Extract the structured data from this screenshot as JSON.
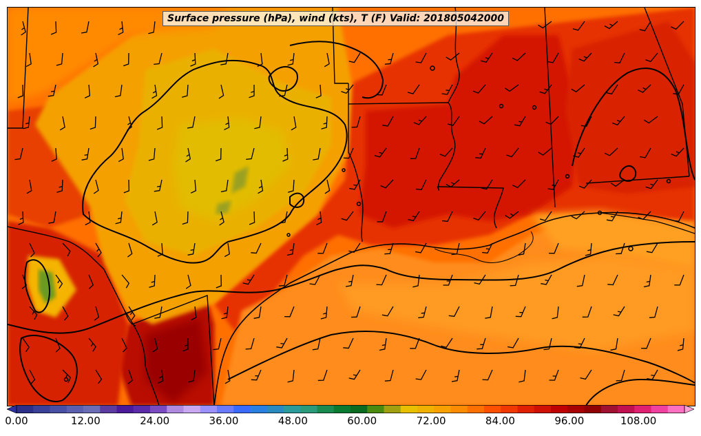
{
  "title": "Surface pressure (hPa), wind (kts), T (F) Valid: 201805042000",
  "colorbar": {
    "min": 0,
    "max": 116,
    "step": 3,
    "extend": "both",
    "tick_labels": [
      "0.00",
      "12.00",
      "24.00",
      "36.00",
      "48.00",
      "60.00",
      "72.00",
      "84.00",
      "96.00",
      "108.00"
    ],
    "colors": [
      "#2b2f88",
      "#3a3f98",
      "#4a4fa6",
      "#5a5fb0",
      "#6a6cb6",
      "#5b3ba0",
      "#4a1a9a",
      "#5a2aa8",
      "#7a4ac0",
      "#b08ae0",
      "#c8a8f0",
      "#9a90ff",
      "#6a7aff",
      "#3a6aff",
      "#2a80e0",
      "#2a8ac0",
      "#2a9a9a",
      "#2a9a7a",
      "#1a8a50",
      "#0a7a30",
      "#0a6a20",
      "#4a8a10",
      "#a0a010",
      "#e8c000",
      "#f0b000",
      "#f8a000",
      "#ff8c00",
      "#ff7000",
      "#ff5000",
      "#f03800",
      "#e02000",
      "#d01000",
      "#c00000",
      "#a80000",
      "#900000",
      "#a01030",
      "#c01050",
      "#e02070",
      "#f040a0",
      "#ff70c0"
    ]
  },
  "legend_colors": {
    "gulf_water": "#ff8c1a",
    "warm_land": "#ff6a00",
    "hot_land": "#e52000",
    "very_hot": "#a80000",
    "cool_plateau": "#f0b000",
    "coolest": "#e0c000",
    "mountain_green": "#7aa020"
  }
}
